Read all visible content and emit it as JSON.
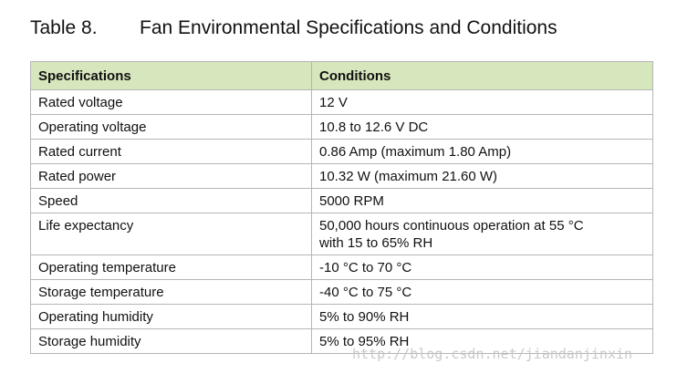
{
  "title": {
    "label": "Table 8.",
    "text": "Fan Environmental Specifications and Conditions"
  },
  "table": {
    "header": [
      "Specifications",
      "Conditions"
    ],
    "rows": [
      [
        "Rated voltage",
        "12 V"
      ],
      [
        "Operating voltage",
        "10.8 to 12.6 V DC"
      ],
      [
        "Rated current",
        "0.86 Amp (maximum 1.80 Amp)"
      ],
      [
        "Rated power",
        "10.32 W (maximum 21.60 W)"
      ],
      [
        "Speed",
        "5000 RPM"
      ],
      [
        "Life expectancy",
        [
          "50,000 hours continuous operation at 55 °C",
          "with 15 to 65% RH"
        ]
      ],
      [
        "Operating temperature",
        "-10 °C to 70 °C"
      ],
      [
        "Storage temperature",
        "-40 °C to 75 °C"
      ],
      [
        "Operating humidity",
        "5% to 90% RH"
      ],
      [
        "Storage humidity",
        "5% to 95% RH"
      ]
    ]
  },
  "watermark": "http://blog.csdn.net/jiandanjinxin"
}
